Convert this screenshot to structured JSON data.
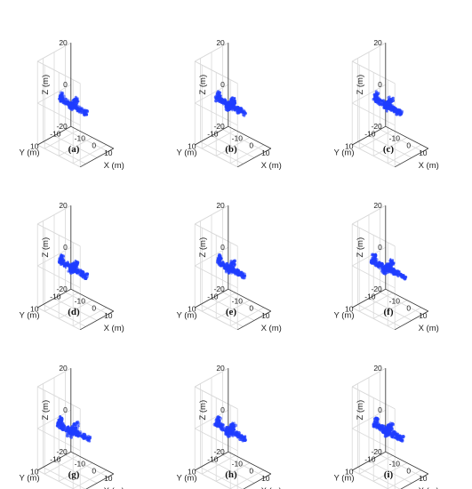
{
  "chart_data": {
    "type": "scatter",
    "projection": "3d",
    "grid": true,
    "legend": "none",
    "point_color": "#1f3dff",
    "x_axis": {
      "label": "X (m)",
      "ticks": [
        -10,
        0,
        10
      ],
      "range": [
        -15,
        15
      ]
    },
    "y_axis": {
      "label": "Y (m)",
      "ticks": [
        -10,
        10
      ],
      "range": [
        -15,
        15
      ]
    },
    "z_axis": {
      "label": "Z (m)",
      "ticks": [
        -20,
        0,
        20
      ],
      "range": [
        -20,
        20
      ]
    },
    "panels": [
      {
        "caption": "(a)",
        "spread": 1.0
      },
      {
        "caption": "(b)",
        "spread": 1.05
      },
      {
        "caption": "(c)",
        "spread": 1.0
      },
      {
        "caption": "(d)",
        "spread": 1.0
      },
      {
        "caption": "(e)",
        "spread": 1.0
      },
      {
        "caption": "(f)",
        "spread": 1.25
      },
      {
        "caption": "(g)",
        "spread": 1.2
      },
      {
        "caption": "(h)",
        "spread": 1.1
      },
      {
        "caption": "(i)",
        "spread": 1.05
      }
    ]
  }
}
